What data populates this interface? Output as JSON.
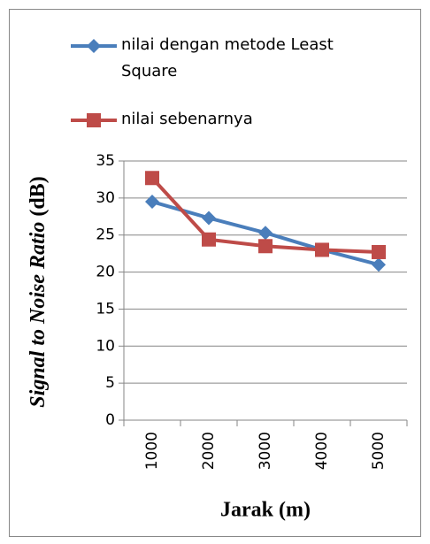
{
  "chart_data": {
    "type": "line",
    "categories": [
      "1000",
      "2000",
      "3000",
      "4000",
      "5000"
    ],
    "series": [
      {
        "name": "nilai dengan metode Least Square",
        "color": "#4a7ebb",
        "marker": "diamond",
        "values": [
          29.5,
          27.3,
          25.3,
          23.0,
          21.0
        ]
      },
      {
        "name": "nilai sebenarnya",
        "color": "#be4b48",
        "marker": "square",
        "values": [
          32.7,
          24.4,
          23.5,
          23.0,
          22.7
        ]
      }
    ],
    "x_label": "Jarak (m)",
    "y_label": [
      "Signal to Noise Ratio",
      "(dB)"
    ],
    "ylim": [
      0,
      35
    ],
    "yticks": [
      0,
      5,
      10,
      15,
      20,
      25,
      30,
      35
    ],
    "grid": true,
    "legend": "top"
  }
}
